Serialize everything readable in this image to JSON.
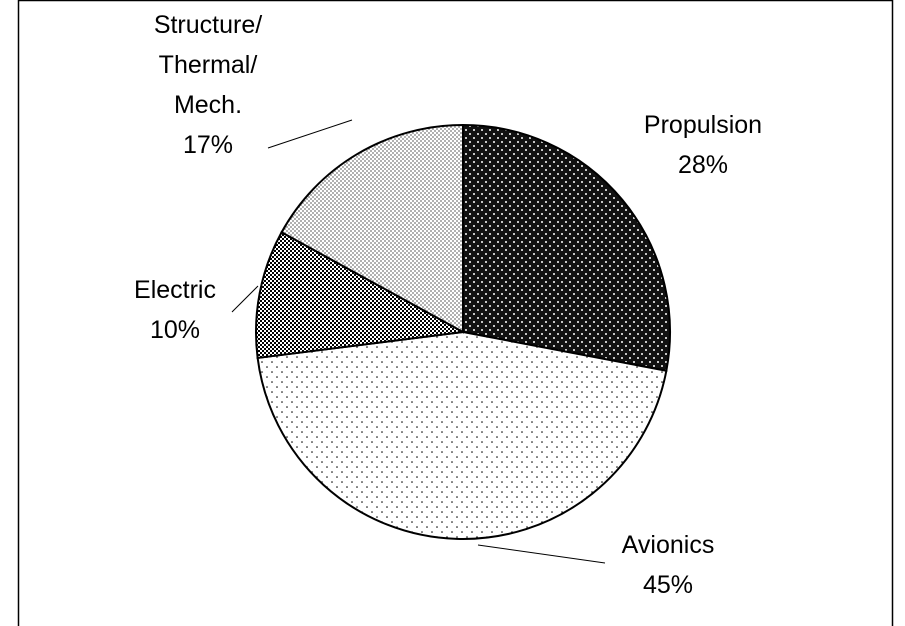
{
  "chart_data": {
    "type": "pie",
    "categories": [
      "Propulsion",
      "Avionics",
      "Electric",
      "Structure/\nThermal/\nMech."
    ],
    "values": [
      28,
      45,
      10,
      17
    ],
    "value_labels": [
      "28%",
      "45%",
      "10%",
      "17%"
    ],
    "colors": [
      "#111111",
      "#f6f6f6",
      "#2a2a2a",
      "#d6d6d6"
    ]
  }
}
